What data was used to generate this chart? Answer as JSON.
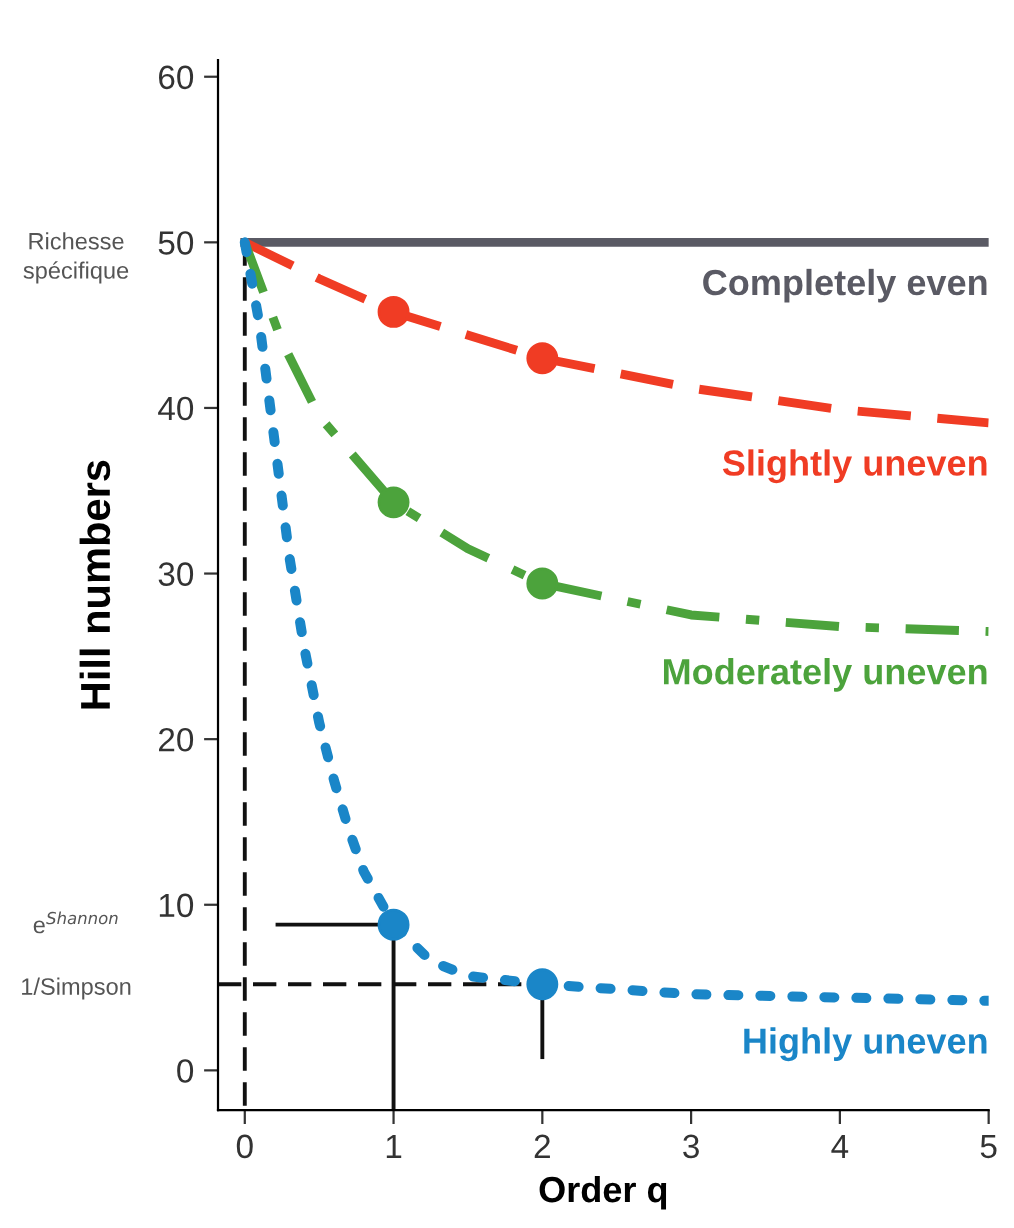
{
  "chart_data": {
    "type": "line",
    "xlabel": "Order q",
    "ylabel": "Hill numbers",
    "xlim": [
      -0.18,
      5
    ],
    "ylim": [
      -2.4,
      61
    ],
    "xticks": [
      0,
      1,
      2,
      3,
      4,
      5
    ],
    "yticks": [
      0,
      10,
      20,
      30,
      40,
      50,
      60
    ],
    "grid": false,
    "legend": false,
    "series": [
      {
        "name": "Completely even",
        "color": "#5a5a64",
        "line_style": "solid",
        "x": [
          0,
          5
        ],
        "values": [
          50,
          50
        ]
      },
      {
        "name": "Slightly uneven",
        "color": "#f03c24",
        "line_style": "dashed",
        "x": [
          0,
          0.5,
          1,
          2,
          3,
          4,
          5
        ],
        "values": [
          50,
          47.8,
          45.8,
          43.0,
          41.2,
          39.9,
          39.1
        ]
      },
      {
        "name": "Moderately uneven",
        "color": "#4ca33c",
        "line_style": "dashdot",
        "x": [
          0,
          0.25,
          0.5,
          1,
          1.5,
          2,
          3,
          4,
          5
        ],
        "values": [
          50,
          44,
          39.5,
          34.3,
          31.5,
          29.4,
          27.5,
          26.8,
          26.5
        ]
      },
      {
        "name": "Highly uneven",
        "color": "#1a86c8",
        "line_style": "dotted",
        "x": [
          0,
          0.1,
          0.2,
          0.3,
          0.4,
          0.5,
          0.6,
          0.7,
          0.8,
          1,
          1.25,
          1.5,
          2,
          3,
          4,
          5
        ],
        "values": [
          50,
          45,
          38,
          31,
          25.5,
          21,
          17.5,
          14.5,
          12,
          8.8,
          6.6,
          5.7,
          5.2,
          4.6,
          4.4,
          4.2
        ]
      },
      {
        "type": "scatter",
        "color": "#f03c24",
        "marker": "circle",
        "x": [
          1,
          2
        ],
        "values": [
          45.8,
          43.0
        ]
      },
      {
        "type": "scatter",
        "color": "#4ca33c",
        "marker": "circle",
        "x": [
          1,
          2
        ],
        "values": [
          34.3,
          29.4
        ]
      },
      {
        "type": "scatter",
        "color": "#1a86c8",
        "marker": "circle",
        "x": [
          1,
          2
        ],
        "values": [
          8.8,
          5.2
        ]
      },
      {
        "color": "#111111",
        "line_style": "dashed",
        "x": [
          0,
          0
        ],
        "values": [
          50,
          -2.4
        ]
      },
      {
        "color": "#111111",
        "line_style": "dashed",
        "x": [
          -0.18,
          2
        ],
        "values": [
          5.2,
          5.2
        ]
      },
      {
        "color": "#111111",
        "line_style": "solid",
        "x": [
          0.22,
          1,
          1
        ],
        "values": [
          8.8,
          8.8,
          -2.4
        ]
      },
      {
        "color": "#111111",
        "line_style": "solid",
        "x": [
          2,
          2
        ],
        "values": [
          5.2,
          0.8
        ]
      }
    ],
    "annotations": [
      "Richesse\nspécifique",
      "e$^{Shannon}$",
      "1/Simpson"
    ]
  }
}
